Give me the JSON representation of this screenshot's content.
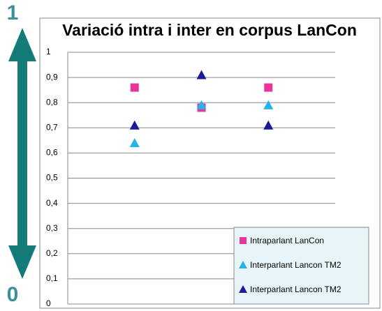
{
  "side_scale": {
    "top": "1",
    "bottom": "0"
  },
  "chart_data": {
    "type": "scatter",
    "title": "Variació intra i inter en corpus LanCon",
    "categories": [
      null,
      null,
      null
    ],
    "series": [
      {
        "name": "Intraparlant LanCon",
        "color": "#e8359a",
        "marker": "square",
        "values": [
          0.86,
          0.78,
          0.86
        ]
      },
      {
        "name": "Interparlant Lancon TM2",
        "color": "#25b4e8",
        "marker": "triangle",
        "values": [
          0.64,
          0.79,
          0.79
        ]
      },
      {
        "name": "Interparlant Lancon TM2",
        "color": "#1c1a9c",
        "marker": "triangle",
        "values": [
          0.71,
          0.91,
          0.71
        ]
      }
    ],
    "ylim": [
      0,
      1
    ],
    "yticks": [
      0,
      {
        "value": 0.1,
        "label": "0,1"
      },
      {
        "value": 0.2,
        "label": "0,2"
      },
      {
        "value": 0.3,
        "label": "0,3"
      },
      {
        "value": 0.4,
        "label": "0,4"
      },
      {
        "value": 0.5,
        "label": "0,5"
      },
      {
        "value": 0.6,
        "label": "0,6"
      },
      {
        "value": 0.7,
        "label": "0,7"
      },
      {
        "value": 0.8,
        "label": "0,8"
      },
      {
        "value": 0.9,
        "label": "0,9"
      },
      1
    ],
    "grid": true,
    "legend": "lower right"
  }
}
